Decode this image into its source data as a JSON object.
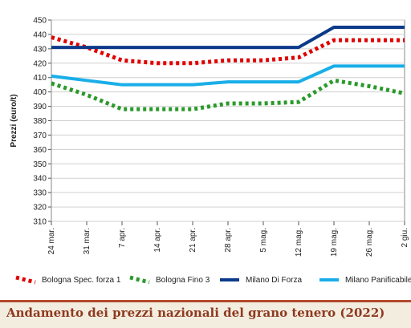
{
  "chart_data": {
    "type": "line",
    "ylabel": "Prezzi (euro/t)",
    "ylim": [
      310,
      450
    ],
    "yticks": [
      310,
      320,
      330,
      340,
      350,
      360,
      370,
      380,
      390,
      400,
      410,
      420,
      430,
      440,
      450
    ],
    "grid": true,
    "x": [
      "24 mar.",
      "31 mar.",
      "7 apr.",
      "14 apr.",
      "21 apr.",
      "28 apr.",
      "5 mag.",
      "12 mag.",
      "19 mag.",
      "26 mag.",
      "2 giu."
    ],
    "series": [
      {
        "name": "Bologna Spec. forza 1",
        "color": "#e00000",
        "style": "dotted",
        "values": [
          438,
          431,
          422,
          420,
          420,
          422,
          422,
          424,
          436,
          436,
          436
        ]
      },
      {
        "name": "Bologna Fino 3",
        "color": "#2a9a2a",
        "style": "dotted",
        "values": [
          406,
          398,
          388,
          388,
          388,
          392,
          392,
          393,
          408,
          404,
          399
        ]
      },
      {
        "name": "Milano Di Forza",
        "color": "#0b3a8a",
        "style": "solid",
        "values": [
          431,
          431,
          431,
          431,
          431,
          431,
          431,
          431,
          445,
          445,
          445
        ]
      },
      {
        "name": "Milano Panificabile",
        "color": "#19aee8",
        "style": "solid",
        "values": [
          411,
          408,
          405,
          405,
          405,
          407,
          407,
          407,
          418,
          418,
          418
        ]
      }
    ],
    "legend_position": "bottom"
  },
  "footer": {
    "title": "Andamento dei prezzi nazionali del grano tenero (2022)",
    "accent": "#b24a2c",
    "background": "#f3ede0"
  }
}
